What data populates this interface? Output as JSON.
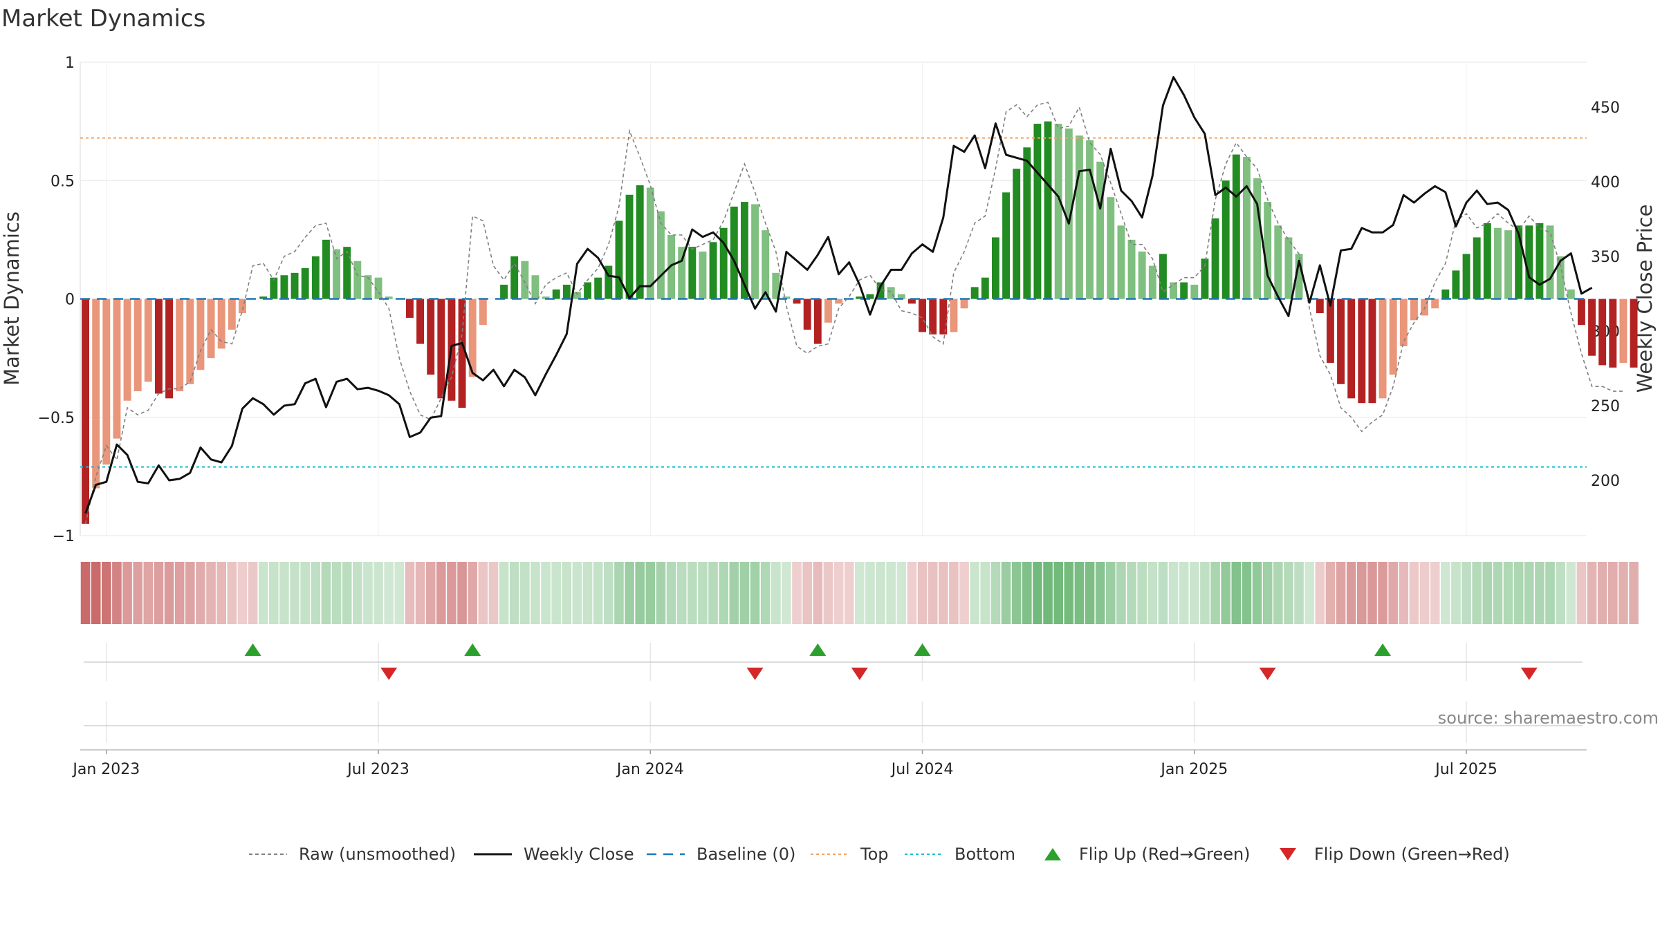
{
  "chart_data": {
    "type": "bar",
    "title": "Market Dynamics",
    "ylabel_left": "Market Dynamics",
    "ylabel_right": "Weekly Close Price",
    "ylim_left": [
      -1,
      1
    ],
    "ylim_right": [
      163,
      480
    ],
    "yticks_left": [
      {
        "value": 1,
        "label": "1"
      },
      {
        "value": 0.5,
        "label": "0.5"
      },
      {
        "value": 0,
        "label": "0"
      },
      {
        "value": -0.5,
        "label": "−0.5"
      },
      {
        "value": -1,
        "label": "−1"
      }
    ],
    "yticks_right": [
      {
        "value": 450,
        "label": "450"
      },
      {
        "value": 400,
        "label": "400"
      },
      {
        "value": 350,
        "label": "350"
      },
      {
        "value": 300,
        "label": "300"
      },
      {
        "value": 250,
        "label": "250"
      },
      {
        "value": 200,
        "label": "200"
      }
    ],
    "xticks": [
      {
        "week": 2,
        "label": "Jan 2023"
      },
      {
        "week": 28,
        "label": "Jul 2023"
      },
      {
        "week": 54,
        "label": "Jan 2024"
      },
      {
        "week": 80,
        "label": "Jul 2024"
      },
      {
        "week": 106,
        "label": "Jan 2025"
      },
      {
        "week": 132,
        "label": "Jul 2025"
      }
    ],
    "grid": true,
    "legend_position": "bottom-center",
    "top_level": 0.68,
    "bottom_level": -0.71,
    "baseline": 0,
    "colors": {
      "green_strong": "#228b22",
      "green_weak": "#7fbf7f",
      "red_strong": "#b22222",
      "red_weak": "#e9967a",
      "close_line": "#111111",
      "raw_line": "#808080",
      "baseline": "#1f77b4",
      "top": "#f4a460",
      "bottom": "#17becf",
      "flip_up": "#2ca02c",
      "flip_down": "#d62728",
      "heat_green": "#5fb06a",
      "heat_red": "#c45a5a"
    },
    "weeks": 144,
    "dynamics": [
      -0.95,
      -0.8,
      -0.7,
      -0.59,
      -0.43,
      -0.39,
      -0.35,
      -0.4,
      -0.42,
      -0.39,
      -0.36,
      -0.3,
      -0.25,
      -0.21,
      -0.13,
      -0.06,
      0,
      0.01,
      0.09,
      0.1,
      0.11,
      0.13,
      0.18,
      0.25,
      0.21,
      0.22,
      0.16,
      0.1,
      0.09,
      0.01,
      0,
      -0.08,
      -0.19,
      -0.32,
      -0.42,
      -0.43,
      -0.46,
      -0.33,
      -0.11,
      0,
      0.06,
      0.18,
      0.16,
      0.1,
      0.01,
      0.04,
      0.06,
      0.03,
      0.07,
      0.09,
      0.14,
      0.33,
      0.44,
      0.48,
      0.47,
      0.37,
      0.27,
      0.22,
      0.22,
      0.2,
      0.24,
      0.3,
      0.39,
      0.41,
      0.4,
      0.29,
      0.11,
      0.01,
      -0.02,
      -0.13,
      -0.19,
      -0.1,
      -0.02,
      0,
      0.01,
      0.02,
      0.07,
      0.05,
      0.02,
      -0.02,
      -0.14,
      -0.15,
      -0.15,
      -0.14,
      -0.04,
      0.05,
      0.09,
      0.26,
      0.45,
      0.55,
      0.64,
      0.74,
      0.75,
      0.74,
      0.72,
      0.69,
      0.67,
      0.58,
      0.43,
      0.31,
      0.25,
      0.2,
      0.14,
      0.19,
      0.07,
      0.07,
      0.06,
      0.17,
      0.34,
      0.5,
      0.61,
      0.6,
      0.51,
      0.41,
      0.31,
      0.26,
      0.19,
      0,
      -0.06,
      -0.27,
      -0.36,
      -0.42,
      -0.44,
      -0.44,
      -0.42,
      -0.32,
      -0.2,
      -0.09,
      -0.07,
      -0.04,
      0.04,
      0.12,
      0.19,
      0.26,
      0.32,
      0.3,
      0.29,
      0.31,
      0.31,
      0.32,
      0.31,
      0.18,
      0.04,
      -0.11,
      -0.24,
      -0.28,
      -0.29,
      -0.27,
      -0.29
    ],
    "raw": [
      -0.95,
      -0.75,
      -0.62,
      -0.68,
      -0.46,
      -0.49,
      -0.47,
      -0.4,
      -0.38,
      -0.38,
      -0.35,
      -0.22,
      -0.13,
      -0.18,
      -0.19,
      -0.05,
      0.14,
      0.15,
      0.08,
      0.18,
      0.2,
      0.26,
      0.31,
      0.32,
      0.17,
      0.2,
      0.1,
      0.09,
      0.03,
      -0.04,
      -0.25,
      -0.39,
      -0.49,
      -0.51,
      -0.42,
      -0.33,
      -0.15,
      0.35,
      0.33,
      0.14,
      0.08,
      0.15,
      0.07,
      -0.02,
      0.06,
      0.09,
      0.11,
      0.02,
      0.08,
      0.13,
      0.23,
      0.39,
      0.71,
      0.6,
      0.48,
      0.32,
      0.27,
      0.27,
      0.21,
      0.23,
      0.25,
      0.33,
      0.45,
      0.57,
      0.45,
      0.32,
      0.2,
      -0.03,
      -0.2,
      -0.23,
      -0.2,
      -0.19,
      -0.04,
      0.01,
      0.08,
      0.1,
      0.04,
      0.03,
      -0.05,
      -0.06,
      -0.08,
      -0.16,
      -0.19,
      0.11,
      0.2,
      0.32,
      0.35,
      0.55,
      0.79,
      0.82,
      0.77,
      0.82,
      0.83,
      0.72,
      0.73,
      0.81,
      0.66,
      0.61,
      0.49,
      0.36,
      0.23,
      0.23,
      0.17,
      0.03,
      0.06,
      0.09,
      0.09,
      0.14,
      0.42,
      0.57,
      0.66,
      0.6,
      0.55,
      0.42,
      0.32,
      0.25,
      0.19,
      -0.04,
      -0.24,
      -0.32,
      -0.46,
      -0.5,
      -0.56,
      -0.52,
      -0.49,
      -0.37,
      -0.18,
      -0.1,
      -0.04,
      0.07,
      0.15,
      0.33,
      0.36,
      0.3,
      0.32,
      0.36,
      0.32,
      0.29,
      0.35,
      0.3,
      0.28,
      0.14,
      -0.06,
      -0.23,
      -0.37,
      -0.37,
      -0.39,
      -0.39
    ],
    "close": [
      178,
      197,
      199,
      224,
      217,
      199,
      198,
      210,
      200,
      201,
      205,
      222,
      214,
      212,
      223,
      248,
      255,
      251,
      244,
      250,
      251,
      265,
      268,
      249,
      266,
      268,
      261,
      262,
      260,
      257,
      251,
      229,
      232,
      242,
      243,
      290,
      292,
      272,
      267,
      274,
      263,
      274,
      269,
      257,
      271,
      284,
      298,
      345,
      355,
      349,
      337,
      336,
      322,
      330,
      330,
      337,
      344,
      347,
      368,
      363,
      366,
      359,
      347,
      331,
      315,
      326,
      313,
      353,
      347,
      341,
      351,
      363,
      338,
      346,
      331,
      311,
      330,
      341,
      341,
      352,
      358,
      353,
      376,
      424,
      420,
      431,
      409,
      439,
      418,
      416,
      414,
      406,
      398,
      390,
      372,
      407,
      408,
      382,
      422,
      394,
      387,
      376,
      404,
      451,
      470,
      458,
      443,
      432,
      391,
      396,
      390,
      397,
      385,
      337,
      323,
      310,
      347,
      319,
      344,
      317,
      354,
      355,
      369,
      366,
      366,
      371,
      391,
      386,
      392,
      397,
      393,
      370,
      386,
      394,
      385,
      386,
      381,
      365,
      336,
      331,
      335,
      347,
      352,
      325,
      329
    ]
  },
  "heat_strip": {
    "intensities": [
      0.95,
      0.8,
      0.7,
      0.59,
      0.43,
      0.39,
      0.35,
      0.4,
      0.42,
      0.39,
      0.36,
      0.3,
      0.25,
      0.21,
      0.13,
      0.06,
      0.1,
      0.1,
      0.12,
      0.12,
      0.13,
      0.14,
      0.18,
      0.25,
      0.21,
      0.22,
      0.16,
      0.1,
      0.09,
      0.05,
      0.05,
      0.18,
      0.22,
      0.32,
      0.42,
      0.43,
      0.46,
      0.33,
      0.11,
      0.1,
      0.12,
      0.18,
      0.16,
      0.12,
      0.1,
      0.1,
      0.12,
      0.1,
      0.12,
      0.14,
      0.18,
      0.33,
      0.44,
      0.48,
      0.47,
      0.37,
      0.27,
      0.22,
      0.22,
      0.2,
      0.24,
      0.3,
      0.39,
      0.41,
      0.4,
      0.29,
      0.11,
      0.05,
      0.05,
      0.13,
      0.19,
      0.1,
      0.05,
      0.05,
      0.05,
      0.08,
      0.09,
      0.08,
      0.05,
      0.05,
      0.14,
      0.15,
      0.15,
      0.14,
      0.05,
      0.1,
      0.12,
      0.26,
      0.45,
      0.55,
      0.64,
      0.74,
      0.75,
      0.74,
      0.72,
      0.69,
      0.67,
      0.58,
      0.43,
      0.31,
      0.25,
      0.2,
      0.14,
      0.19,
      0.1,
      0.1,
      0.1,
      0.17,
      0.34,
      0.5,
      0.61,
      0.6,
      0.51,
      0.41,
      0.31,
      0.26,
      0.19,
      0.05,
      0.08,
      0.27,
      0.36,
      0.42,
      0.44,
      0.44,
      0.42,
      0.32,
      0.2,
      0.09,
      0.07,
      0.05,
      0.06,
      0.12,
      0.19,
      0.26,
      0.32,
      0.3,
      0.29,
      0.31,
      0.31,
      0.32,
      0.31,
      0.18,
      0.06,
      0.11,
      0.24,
      0.28,
      0.29,
      0.27,
      0.29
    ]
  },
  "flips": {
    "up_weeks": [
      16,
      37,
      70,
      80,
      124
    ],
    "down_weeks": [
      29,
      64,
      74,
      113,
      138
    ]
  },
  "legend": {
    "raw": "Raw (unsmoothed)",
    "close": "Weekly Close",
    "baseline": "Baseline (0)",
    "top": "Top",
    "bottom": "Bottom",
    "flip_up": "Flip Up (Red→Green)",
    "flip_down": "Flip Down (Green→Red)"
  },
  "source": "source: sharemaestro.com"
}
